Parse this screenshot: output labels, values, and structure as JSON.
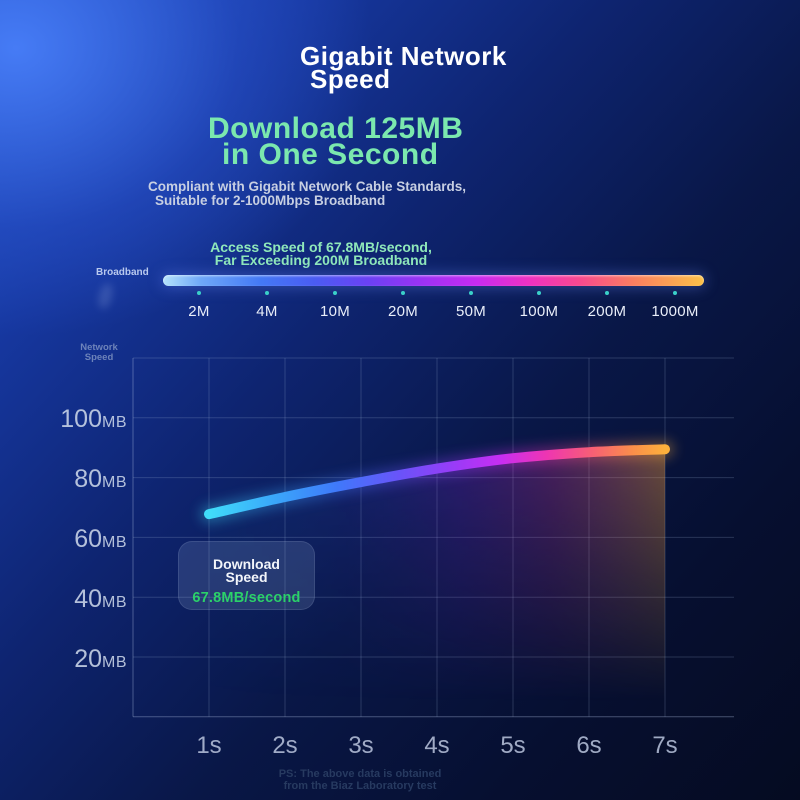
{
  "page": {
    "title_lines": [
      "Gigabit Network",
      "Speed"
    ],
    "headline_lines": [
      "Download 125MB",
      "in One Second"
    ],
    "subtitle_lines": [
      "Compliant with Gigabit Network Cable Standards,",
      "Suitable for 2-1000Mbps Broadband"
    ],
    "access_lines": [
      "Access Speed of 67.8MB/second,",
      "Far Exceeding 200M Broadband"
    ],
    "footer_lines": [
      "PS: The above data is obtained",
      "from the Biaz Laboratory test"
    ]
  },
  "broadband_scale": {
    "label": "Broadband",
    "tiers": [
      "2M",
      "4M",
      "10M",
      "20M",
      "50M",
      "100M",
      "200M",
      "1000M"
    ]
  },
  "tooltip": {
    "title_lines": [
      "Download",
      "Speed"
    ],
    "value": "67.8MB/second",
    "value_color": "#2bd169"
  },
  "chart_data": {
    "type": "line",
    "series_name": "Download Speed",
    "categories": [
      "1s",
      "2s",
      "3s",
      "4s",
      "5s",
      "6s",
      "7s"
    ],
    "values": [
      67.8,
      73.5,
      78.5,
      83,
      86.5,
      88.5,
      89.5
    ],
    "unit": "MB",
    "ylabel": "Network Speed",
    "ylabel_lines": [
      "Network",
      "Speed"
    ],
    "ytick_labels": [
      {
        "num": "100",
        "unit": "MB"
      },
      {
        "num": "80",
        "unit": "MB"
      },
      {
        "num": "60",
        "unit": "MB"
      },
      {
        "num": "40",
        "unit": "MB"
      },
      {
        "num": "20",
        "unit": "MB"
      }
    ],
    "ylim": [
      0,
      120
    ],
    "grid": true,
    "legend_position": "none",
    "annotation": "Download Speed 67.8MB/second",
    "line_gradient": [
      "#40dcf9",
      "#3f79fa",
      "#6a53f9",
      "#9a3bf7",
      "#c72ef2",
      "#ee35b2",
      "#f75f75",
      "#fb8f4a",
      "#fcb03c"
    ]
  },
  "colors": {
    "background_top_left": "#2d62e4",
    "background_bottom": "#050b21",
    "headline_green": "#7be8ae",
    "access_green": "#8fe8ba",
    "tooltip_value_green": "#2bd169",
    "scale_dot_teal": "#3ad0c9",
    "scale_gradient": [
      "#b5e3fb",
      "#4479f5",
      "#6b41f4",
      "#c72bf1",
      "#ef32c0",
      "#f8498f",
      "#fcc148"
    ]
  }
}
